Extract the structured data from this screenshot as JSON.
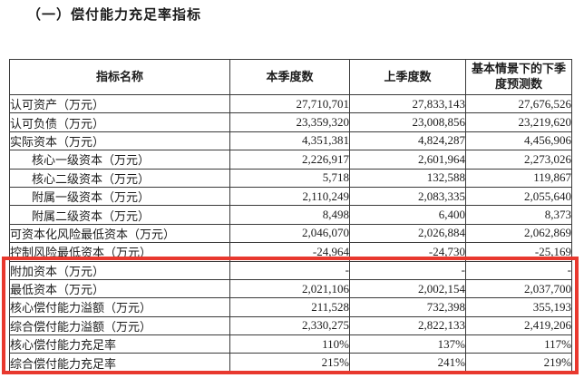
{
  "page": {
    "title": "（一）偿付能力充足率指标"
  },
  "table": {
    "columns": [
      "指标名称",
      "本季度数",
      "上季度数",
      "基本情景下的下季度预测数"
    ],
    "rows": [
      {
        "label": "认可资产（万元）",
        "indent": false,
        "current": "27,710,701",
        "previous": "27,833,143",
        "forecast": "27,676,526",
        "highlighted": false
      },
      {
        "label": "认可负债（万元）",
        "indent": false,
        "current": "23,359,320",
        "previous": "23,008,856",
        "forecast": "23,219,620",
        "highlighted": false
      },
      {
        "label": "实际资本（万元）",
        "indent": false,
        "current": "4,351,381",
        "previous": "4,824,287",
        "forecast": "4,456,906",
        "highlighted": false
      },
      {
        "label": "核心一级资本（万元）",
        "indent": true,
        "current": "2,226,917",
        "previous": "2,601,964",
        "forecast": "2,273,026",
        "highlighted": false
      },
      {
        "label": "核心二级资本（万元）",
        "indent": true,
        "current": "5,718",
        "previous": "132,588",
        "forecast": "119,867",
        "highlighted": false
      },
      {
        "label": "附属一级资本（万元）",
        "indent": true,
        "current": "2,110,249",
        "previous": "2,083,335",
        "forecast": "2,055,640",
        "highlighted": false
      },
      {
        "label": "附属二级资本（万元）",
        "indent": true,
        "current": "8,498",
        "previous": "6,400",
        "forecast": "8,373",
        "highlighted": false
      },
      {
        "label": "可资本化风险最低资本（万元）",
        "indent": false,
        "current": "2,046,070",
        "previous": "2,026,884",
        "forecast": "2,062,869",
        "highlighted": false
      },
      {
        "label": "控制风险最低资本（万元）",
        "indent": false,
        "current": "-24,964",
        "previous": "-24,730",
        "forecast": "-25,169",
        "highlighted": false
      },
      {
        "label": "附加资本（万元）",
        "indent": false,
        "current": "-",
        "previous": "-",
        "forecast": "-",
        "highlighted": true
      },
      {
        "label": "最低资本（万元）",
        "indent": false,
        "current": "2,021,106",
        "previous": "2,002,154",
        "forecast": "2,037,700",
        "highlighted": true
      },
      {
        "label": "核心偿付能力溢额（万元）",
        "indent": false,
        "current": "211,528",
        "previous": "732,398",
        "forecast": "355,193",
        "highlighted": true
      },
      {
        "label": "综合偿付能力溢额（万元）",
        "indent": false,
        "current": "2,330,275",
        "previous": "2,822,133",
        "forecast": "2,419,206",
        "highlighted": true
      },
      {
        "label": "核心偿付能力充足率",
        "indent": false,
        "current": "110%",
        "previous": "137%",
        "forecast": "117%",
        "highlighted": true
      },
      {
        "label": "综合偿付能力充足率",
        "indent": false,
        "current": "215%",
        "previous": "241%",
        "forecast": "219%",
        "highlighted": true
      }
    ],
    "highlight_box": {
      "color": "#e8382e",
      "first_row": "附加资本（万元）",
      "last_row": "综合偿付能力充足率"
    }
  }
}
